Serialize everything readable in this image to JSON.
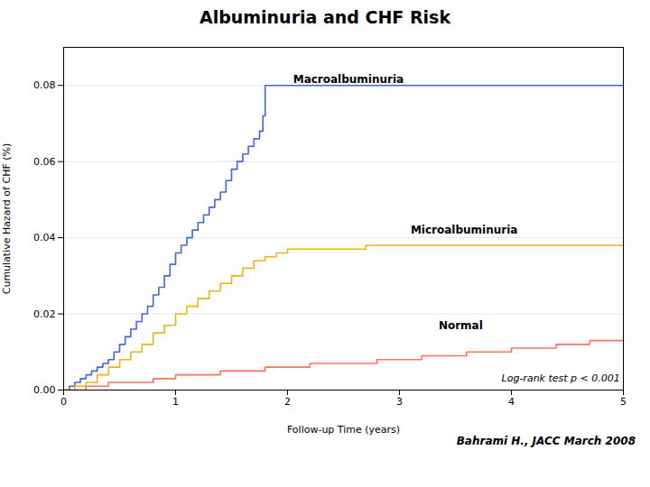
{
  "chart_data": {
    "type": "step",
    "title": "Albuminuria and CHF Risk",
    "xlabel": "Follow-up Time (years)",
    "ylabel": "Cumulative Hazard of CHF (%)",
    "caption": "Bahrami H.,  JACC  March 2008",
    "xlim": [
      0,
      5
    ],
    "ylim": [
      0.0,
      0.09
    ],
    "xticks": [
      0,
      1,
      2,
      3,
      4,
      5
    ],
    "yticks": [
      {
        "value": 0.0,
        "label": "0.00"
      },
      0.02,
      0.04,
      0.06,
      0.08
    ],
    "grid": "y",
    "annotations": [
      {
        "text": "Log-rank test p < 0.001",
        "x": 4.97,
        "y": 0.003
      }
    ],
    "series": [
      {
        "name": "Macroalbuminuria",
        "label_position": [
          2.05,
          0.0815
        ],
        "x": [
          0.0,
          0.05,
          0.1,
          0.15,
          0.2,
          0.25,
          0.3,
          0.35,
          0.4,
          0.45,
          0.5,
          0.55,
          0.6,
          0.65,
          0.7,
          0.75,
          0.8,
          0.85,
          0.9,
          0.95,
          1.0,
          1.05,
          1.1,
          1.15,
          1.2,
          1.25,
          1.3,
          1.35,
          1.4,
          1.45,
          1.5,
          1.55,
          1.6,
          1.65,
          1.7,
          1.75,
          1.78,
          1.8,
          2.0,
          2.5,
          3.0,
          3.5,
          4.0,
          4.5,
          5.0
        ],
        "values": [
          0.0,
          0.001,
          0.002,
          0.003,
          0.004,
          0.005,
          0.006,
          0.007,
          0.008,
          0.01,
          0.012,
          0.014,
          0.016,
          0.018,
          0.02,
          0.022,
          0.025,
          0.027,
          0.03,
          0.033,
          0.036,
          0.038,
          0.04,
          0.042,
          0.044,
          0.046,
          0.048,
          0.05,
          0.052,
          0.055,
          0.058,
          0.06,
          0.062,
          0.064,
          0.066,
          0.068,
          0.072,
          0.08,
          0.08,
          0.08,
          0.08,
          0.08,
          0.08,
          0.08,
          0.08
        ]
      },
      {
        "name": "Microalbuminuria",
        "label_position": [
          3.1,
          0.042
        ],
        "x": [
          0.0,
          0.1,
          0.2,
          0.3,
          0.4,
          0.5,
          0.6,
          0.7,
          0.8,
          0.9,
          1.0,
          1.1,
          1.2,
          1.3,
          1.4,
          1.5,
          1.6,
          1.7,
          1.8,
          1.9,
          2.0,
          2.1,
          2.2,
          2.3,
          2.4,
          2.5,
          2.6,
          2.7,
          2.8,
          2.9,
          3.0,
          3.1,
          3.2,
          3.5,
          4.0,
          4.5,
          5.0
        ],
        "values": [
          0.0,
          0.001,
          0.002,
          0.004,
          0.006,
          0.008,
          0.01,
          0.012,
          0.015,
          0.017,
          0.02,
          0.022,
          0.024,
          0.026,
          0.028,
          0.03,
          0.032,
          0.034,
          0.035,
          0.036,
          0.037,
          0.037,
          0.037,
          0.037,
          0.037,
          0.037,
          0.037,
          0.038,
          0.038,
          0.038,
          0.038,
          0.038,
          0.038,
          0.038,
          0.038,
          0.038,
          0.038
        ]
      },
      {
        "name": "Normal",
        "label_position": [
          3.35,
          0.017
        ],
        "x": [
          0.0,
          0.2,
          0.4,
          0.6,
          0.8,
          1.0,
          1.2,
          1.4,
          1.6,
          1.8,
          2.0,
          2.2,
          2.4,
          2.6,
          2.8,
          3.0,
          3.2,
          3.4,
          3.6,
          3.8,
          4.0,
          4.1,
          4.2,
          4.3,
          4.4,
          4.5,
          4.6,
          4.7,
          4.8,
          5.0
        ],
        "values": [
          0.0,
          0.001,
          0.002,
          0.002,
          0.003,
          0.004,
          0.004,
          0.005,
          0.005,
          0.006,
          0.006,
          0.007,
          0.007,
          0.007,
          0.008,
          0.008,
          0.009,
          0.009,
          0.01,
          0.01,
          0.011,
          0.011,
          0.011,
          0.011,
          0.012,
          0.012,
          0.012,
          0.013,
          0.013,
          0.013
        ]
      }
    ]
  }
}
